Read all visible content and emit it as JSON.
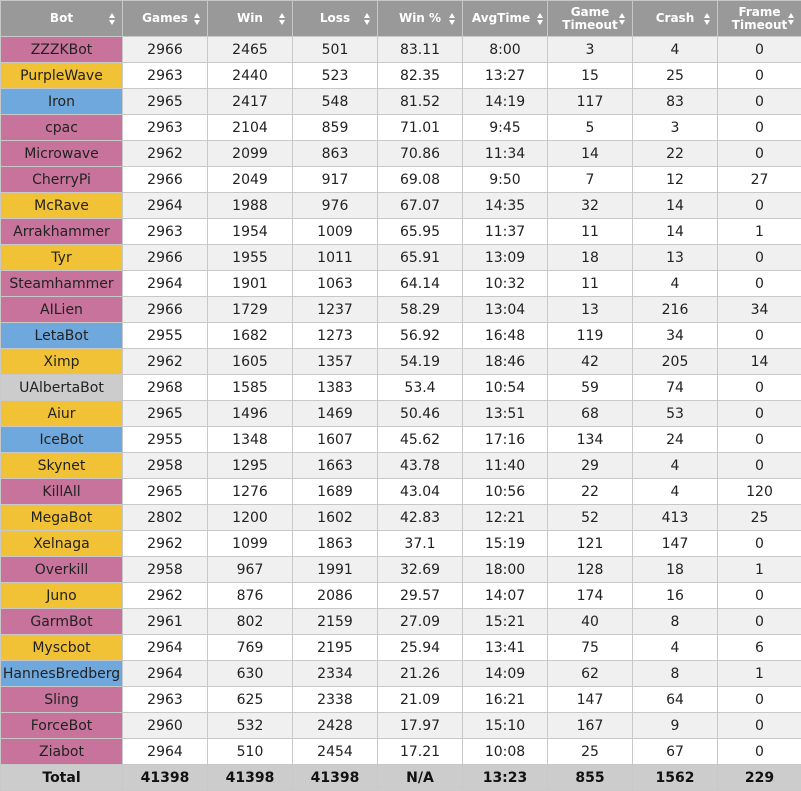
{
  "colors": {
    "header_bg": "#999999",
    "zerg": "#c8739c",
    "protoss": "#f2c236",
    "terran": "#6fa8dc",
    "random": "#cccccc",
    "total_bg": "#cccccc"
  },
  "headers": [
    {
      "line1": "Bot",
      "line2": "",
      "sortable": false
    },
    {
      "line1": "Games",
      "line2": "",
      "sortable": true
    },
    {
      "line1": "Win",
      "line2": "",
      "sortable": true
    },
    {
      "line1": "Loss",
      "line2": "",
      "sortable": true
    },
    {
      "line1": "Win %",
      "line2": "",
      "sortable": true
    },
    {
      "line1": "AvgTime",
      "line2": "",
      "sortable": true
    },
    {
      "line1": "Game",
      "line2": "Timeout",
      "sortable": true
    },
    {
      "line1": "Crash",
      "line2": "",
      "sortable": true
    },
    {
      "line1": "Frame",
      "line2": "Timeout",
      "sortable": true
    }
  ],
  "rows": [
    {
      "bot": "ZZZKBot",
      "race": "zerg",
      "games": "2966",
      "win": "2465",
      "loss": "501",
      "win_pct": "83.11",
      "avg_time": "8:00",
      "game_timeout": "3",
      "crash": "4",
      "frame_timeout": "0"
    },
    {
      "bot": "PurpleWave",
      "race": "protoss",
      "games": "2963",
      "win": "2440",
      "loss": "523",
      "win_pct": "82.35",
      "avg_time": "13:27",
      "game_timeout": "15",
      "crash": "25",
      "frame_timeout": "0"
    },
    {
      "bot": "Iron",
      "race": "terran",
      "games": "2965",
      "win": "2417",
      "loss": "548",
      "win_pct": "81.52",
      "avg_time": "14:19",
      "game_timeout": "117",
      "crash": "83",
      "frame_timeout": "0"
    },
    {
      "bot": "cpac",
      "race": "zerg",
      "games": "2963",
      "win": "2104",
      "loss": "859",
      "win_pct": "71.01",
      "avg_time": "9:45",
      "game_timeout": "5",
      "crash": "3",
      "frame_timeout": "0"
    },
    {
      "bot": "Microwave",
      "race": "zerg",
      "games": "2962",
      "win": "2099",
      "loss": "863",
      "win_pct": "70.86",
      "avg_time": "11:34",
      "game_timeout": "14",
      "crash": "22",
      "frame_timeout": "0"
    },
    {
      "bot": "CherryPi",
      "race": "zerg",
      "games": "2966",
      "win": "2049",
      "loss": "917",
      "win_pct": "69.08",
      "avg_time": "9:50",
      "game_timeout": "7",
      "crash": "12",
      "frame_timeout": "27"
    },
    {
      "bot": "McRave",
      "race": "protoss",
      "games": "2964",
      "win": "1988",
      "loss": "976",
      "win_pct": "67.07",
      "avg_time": "14:35",
      "game_timeout": "32",
      "crash": "14",
      "frame_timeout": "0"
    },
    {
      "bot": "Arrakhammer",
      "race": "zerg",
      "games": "2963",
      "win": "1954",
      "loss": "1009",
      "win_pct": "65.95",
      "avg_time": "11:37",
      "game_timeout": "11",
      "crash": "14",
      "frame_timeout": "1"
    },
    {
      "bot": "Tyr",
      "race": "protoss",
      "games": "2966",
      "win": "1955",
      "loss": "1011",
      "win_pct": "65.91",
      "avg_time": "13:09",
      "game_timeout": "18",
      "crash": "13",
      "frame_timeout": "0"
    },
    {
      "bot": "Steamhammer",
      "race": "zerg",
      "games": "2964",
      "win": "1901",
      "loss": "1063",
      "win_pct": "64.14",
      "avg_time": "10:32",
      "game_timeout": "11",
      "crash": "4",
      "frame_timeout": "0"
    },
    {
      "bot": "AILien",
      "race": "zerg",
      "games": "2966",
      "win": "1729",
      "loss": "1237",
      "win_pct": "58.29",
      "avg_time": "13:04",
      "game_timeout": "13",
      "crash": "216",
      "frame_timeout": "34"
    },
    {
      "bot": "LetaBot",
      "race": "terran",
      "games": "2955",
      "win": "1682",
      "loss": "1273",
      "win_pct": "56.92",
      "avg_time": "16:48",
      "game_timeout": "119",
      "crash": "34",
      "frame_timeout": "0"
    },
    {
      "bot": "Ximp",
      "race": "protoss",
      "games": "2962",
      "win": "1605",
      "loss": "1357",
      "win_pct": "54.19",
      "avg_time": "18:46",
      "game_timeout": "42",
      "crash": "205",
      "frame_timeout": "14"
    },
    {
      "bot": "UAlbertaBot",
      "race": "random",
      "games": "2968",
      "win": "1585",
      "loss": "1383",
      "win_pct": "53.4",
      "avg_time": "10:54",
      "game_timeout": "59",
      "crash": "74",
      "frame_timeout": "0"
    },
    {
      "bot": "Aiur",
      "race": "protoss",
      "games": "2965",
      "win": "1496",
      "loss": "1469",
      "win_pct": "50.46",
      "avg_time": "13:51",
      "game_timeout": "68",
      "crash": "53",
      "frame_timeout": "0"
    },
    {
      "bot": "IceBot",
      "race": "terran",
      "games": "2955",
      "win": "1348",
      "loss": "1607",
      "win_pct": "45.62",
      "avg_time": "17:16",
      "game_timeout": "134",
      "crash": "24",
      "frame_timeout": "0"
    },
    {
      "bot": "Skynet",
      "race": "protoss",
      "games": "2958",
      "win": "1295",
      "loss": "1663",
      "win_pct": "43.78",
      "avg_time": "11:40",
      "game_timeout": "29",
      "crash": "4",
      "frame_timeout": "0"
    },
    {
      "bot": "KillAll",
      "race": "zerg",
      "games": "2965",
      "win": "1276",
      "loss": "1689",
      "win_pct": "43.04",
      "avg_time": "10:56",
      "game_timeout": "22",
      "crash": "4",
      "frame_timeout": "120"
    },
    {
      "bot": "MegaBot",
      "race": "protoss",
      "games": "2802",
      "win": "1200",
      "loss": "1602",
      "win_pct": "42.83",
      "avg_time": "12:21",
      "game_timeout": "52",
      "crash": "413",
      "frame_timeout": "25"
    },
    {
      "bot": "Xelnaga",
      "race": "protoss",
      "games": "2962",
      "win": "1099",
      "loss": "1863",
      "win_pct": "37.1",
      "avg_time": "15:19",
      "game_timeout": "121",
      "crash": "147",
      "frame_timeout": "0"
    },
    {
      "bot": "Overkill",
      "race": "zerg",
      "games": "2958",
      "win": "967",
      "loss": "1991",
      "win_pct": "32.69",
      "avg_time": "18:00",
      "game_timeout": "128",
      "crash": "18",
      "frame_timeout": "1"
    },
    {
      "bot": "Juno",
      "race": "protoss",
      "games": "2962",
      "win": "876",
      "loss": "2086",
      "win_pct": "29.57",
      "avg_time": "14:07",
      "game_timeout": "174",
      "crash": "16",
      "frame_timeout": "0"
    },
    {
      "bot": "GarmBot",
      "race": "zerg",
      "games": "2961",
      "win": "802",
      "loss": "2159",
      "win_pct": "27.09",
      "avg_time": "15:21",
      "game_timeout": "40",
      "crash": "8",
      "frame_timeout": "0"
    },
    {
      "bot": "Myscbot",
      "race": "protoss",
      "games": "2964",
      "win": "769",
      "loss": "2195",
      "win_pct": "25.94",
      "avg_time": "13:41",
      "game_timeout": "75",
      "crash": "4",
      "frame_timeout": "6"
    },
    {
      "bot": "HannesBredberg",
      "race": "terran",
      "games": "2964",
      "win": "630",
      "loss": "2334",
      "win_pct": "21.26",
      "avg_time": "14:09",
      "game_timeout": "62",
      "crash": "8",
      "frame_timeout": "1"
    },
    {
      "bot": "Sling",
      "race": "zerg",
      "games": "2963",
      "win": "625",
      "loss": "2338",
      "win_pct": "21.09",
      "avg_time": "16:21",
      "game_timeout": "147",
      "crash": "64",
      "frame_timeout": "0"
    },
    {
      "bot": "ForceBot",
      "race": "zerg",
      "games": "2960",
      "win": "532",
      "loss": "2428",
      "win_pct": "17.97",
      "avg_time": "15:10",
      "game_timeout": "167",
      "crash": "9",
      "frame_timeout": "0"
    },
    {
      "bot": "Ziabot",
      "race": "zerg",
      "games": "2964",
      "win": "510",
      "loss": "2454",
      "win_pct": "17.21",
      "avg_time": "10:08",
      "game_timeout": "25",
      "crash": "67",
      "frame_timeout": "0"
    }
  ],
  "total": {
    "label": "Total",
    "games": "41398",
    "win": "41398",
    "loss": "41398",
    "win_pct": "N/A",
    "avg_time": "13:23",
    "game_timeout": "855",
    "crash": "1562",
    "frame_timeout": "229"
  }
}
